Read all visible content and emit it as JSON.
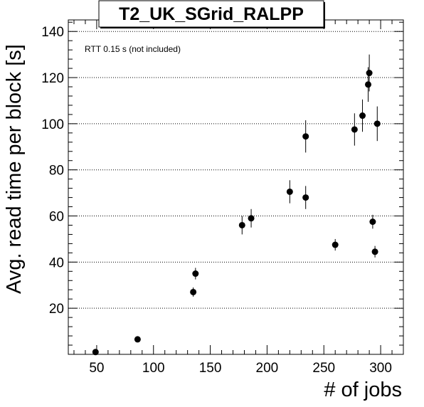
{
  "chart_data": {
    "type": "scatter",
    "title": "T2_UK_SGrid_RALPP",
    "annotation": "RTT 0.15 s (not included)",
    "xlabel": "# of jobs",
    "ylabel": "Avg. read time per block [s]",
    "xlim": [
      25,
      320
    ],
    "ylim": [
      0,
      145
    ],
    "xticks": [
      50,
      100,
      150,
      200,
      250,
      300
    ],
    "yticks": [
      20,
      40,
      60,
      80,
      100,
      120,
      140
    ],
    "grid": "horizontal dotted",
    "points": [
      {
        "x": 49,
        "y": 1.0,
        "err": 0.5
      },
      {
        "x": 86,
        "y": 6.5,
        "err": 0.6
      },
      {
        "x": 135,
        "y": 27.0,
        "err": 2.0
      },
      {
        "x": 137,
        "y": 35.0,
        "err": 2.5
      },
      {
        "x": 178,
        "y": 56.0,
        "err": 4.0
      },
      {
        "x": 186,
        "y": 59.0,
        "err": 4.0
      },
      {
        "x": 220,
        "y": 70.5,
        "err": 5.0
      },
      {
        "x": 234,
        "y": 68.0,
        "err": 5.0
      },
      {
        "x": 234,
        "y": 94.5,
        "err": 7.0
      },
      {
        "x": 260,
        "y": 47.5,
        "err": 2.5
      },
      {
        "x": 277,
        "y": 97.5,
        "err": 7.0
      },
      {
        "x": 284,
        "y": 103.5,
        "err": 7.0
      },
      {
        "x": 289,
        "y": 117.0,
        "err": 7.5
      },
      {
        "x": 290,
        "y": 122.0,
        "err": 8.0
      },
      {
        "x": 293,
        "y": 57.5,
        "err": 3.0
      },
      {
        "x": 295,
        "y": 44.5,
        "err": 2.5
      },
      {
        "x": 297,
        "y": 100.0,
        "err": 7.5
      }
    ]
  }
}
